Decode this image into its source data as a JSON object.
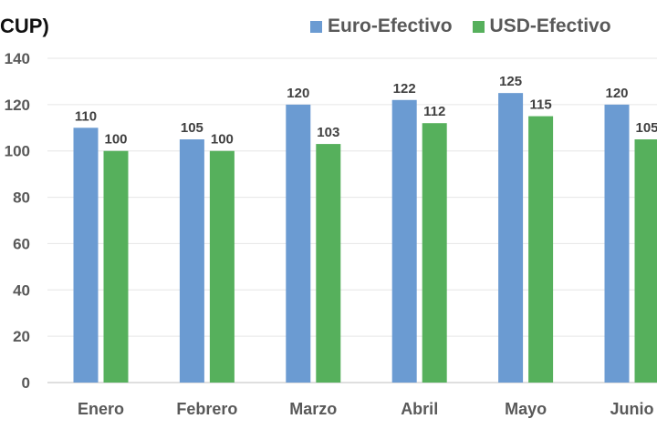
{
  "chart_data": {
    "type": "bar",
    "title": "CUP)",
    "categories": [
      "Enero",
      "Febrero",
      "Marzo",
      "Abril",
      "Mayo",
      "Junio"
    ],
    "series": [
      {
        "name": "Euro-Efectivo",
        "values": [
          110,
          105,
          120,
          122,
          125,
          120
        ],
        "labels": [
          "110",
          "105",
          "120",
          "122",
          "125",
          "120"
        ],
        "color": "#6b9bd2"
      },
      {
        "name": "USD-Efectivo",
        "values": [
          100,
          100,
          103,
          112,
          115,
          105
        ],
        "labels": [
          "100",
          "100",
          "103",
          "112",
          "115",
          "105"
        ],
        "color": "#56b05c"
      }
    ],
    "yticks": [
      0,
      20,
      40,
      60,
      80,
      100,
      120,
      140
    ],
    "ylim": [
      0,
      140
    ],
    "grid": true,
    "legend_position": "top-right"
  }
}
